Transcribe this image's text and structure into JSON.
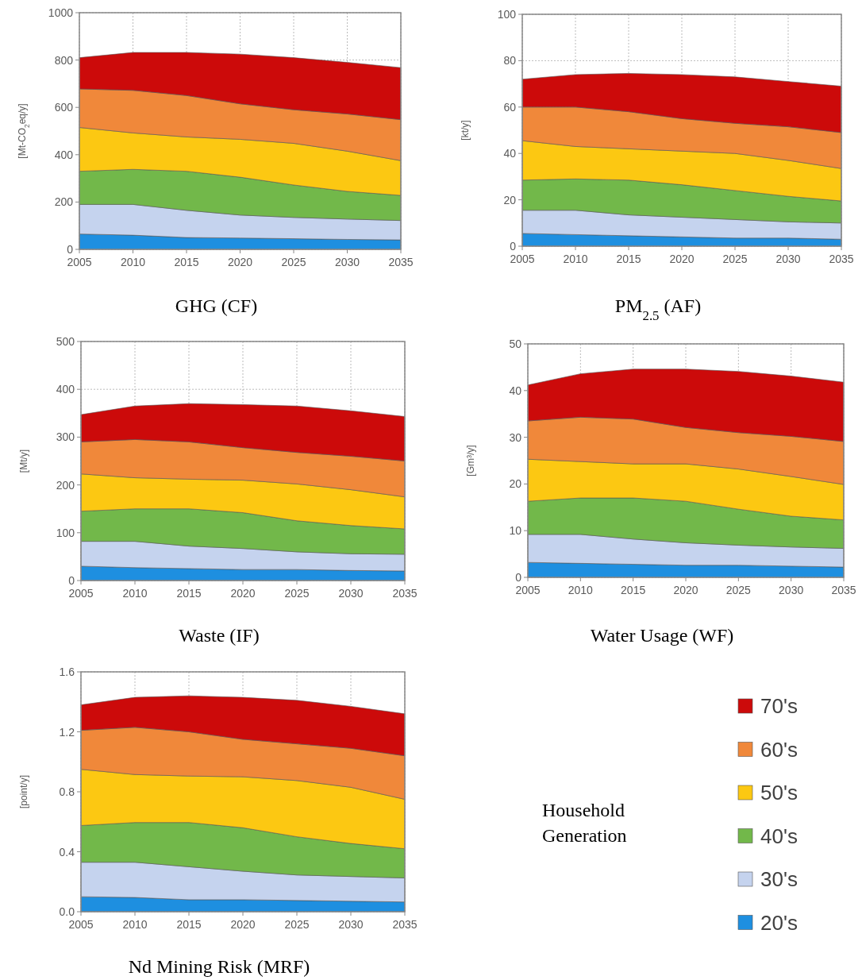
{
  "chart_data": [
    {
      "type": "area",
      "stacked": true,
      "title": "GHG (CF)",
      "ylabel": "[Mt-CO$_{2}$eq/y]",
      "x": [
        2005,
        2010,
        2015,
        2020,
        2025,
        2030,
        2035
      ],
      "xlim": [
        2005,
        2035
      ],
      "xticks": [
        2005,
        2010,
        2015,
        2020,
        2025,
        2030,
        2035
      ],
      "ylim": [
        0,
        1000
      ],
      "yticks": [
        0,
        200,
        400,
        600,
        800,
        1000
      ],
      "grid": true,
      "series": [
        {
          "color": "#1e8fe0",
          "values": [
            65,
            60,
            50,
            48,
            45,
            42,
            40
          ]
        },
        {
          "color": "#c5d3ee",
          "values": [
            125,
            130,
            115,
            97,
            90,
            86,
            82
          ]
        },
        {
          "color": "#72b84a",
          "values": [
            140,
            148,
            165,
            160,
            137,
            117,
            106
          ]
        },
        {
          "color": "#fcc812",
          "values": [
            185,
            154,
            145,
            160,
            176,
            170,
            147
          ]
        },
        {
          "color": "#f0883a",
          "values": [
            163,
            180,
            175,
            150,
            142,
            157,
            173
          ]
        },
        {
          "color": "#cc0a0a",
          "values": [
            132,
            160,
            182,
            210,
            220,
            218,
            220
          ]
        }
      ]
    },
    {
      "type": "area",
      "stacked": true,
      "title": "PM$_{2.5}$ (AF)",
      "ylabel": "[kt/y]",
      "x": [
        2005,
        2010,
        2015,
        2020,
        2025,
        2030,
        2035
      ],
      "xlim": [
        2005,
        2035
      ],
      "xticks": [
        2005,
        2010,
        2015,
        2020,
        2025,
        2030,
        2035
      ],
      "ylim": [
        0,
        100
      ],
      "yticks": [
        0,
        20,
        40,
        60,
        80,
        100
      ],
      "grid": true,
      "series": [
        {
          "color": "#1e8fe0",
          "values": [
            5.5,
            5,
            4.5,
            4,
            3.5,
            3.5,
            3
          ]
        },
        {
          "color": "#c5d3ee",
          "values": [
            10,
            10.5,
            9,
            8.5,
            8,
            7,
            7
          ]
        },
        {
          "color": "#72b84a",
          "values": [
            13,
            13.5,
            15,
            14,
            12.5,
            11,
            9.5
          ]
        },
        {
          "color": "#fcc812",
          "values": [
            17,
            14,
            13.5,
            14.5,
            16,
            15.5,
            14
          ]
        },
        {
          "color": "#f0883a",
          "values": [
            14.5,
            17,
            16,
            14,
            13,
            14.5,
            15.5
          ]
        },
        {
          "color": "#cc0a0a",
          "values": [
            12,
            14,
            16.5,
            19,
            20,
            19.5,
            20
          ]
        }
      ]
    },
    {
      "type": "area",
      "stacked": true,
      "title": "Waste (IF)",
      "ylabel": "[Mt/y]",
      "x": [
        2005,
        2010,
        2015,
        2020,
        2025,
        2030,
        2035
      ],
      "xlim": [
        2005,
        2035
      ],
      "xticks": [
        2005,
        2010,
        2015,
        2020,
        2025,
        2030,
        2035
      ],
      "ylim": [
        0,
        500
      ],
      "yticks": [
        0,
        100,
        200,
        300,
        400,
        500
      ],
      "grid": true,
      "series": [
        {
          "color": "#1e8fe0",
          "values": [
            30,
            27,
            25,
            23,
            23,
            21,
            20
          ]
        },
        {
          "color": "#c5d3ee",
          "values": [
            52,
            55,
            47,
            44,
            37,
            35,
            35
          ]
        },
        {
          "color": "#72b84a",
          "values": [
            63,
            68,
            78,
            75,
            65,
            59,
            53
          ]
        },
        {
          "color": "#fcc812",
          "values": [
            78,
            65,
            62,
            68,
            77,
            75,
            67
          ]
        },
        {
          "color": "#f0883a",
          "values": [
            67,
            80,
            78,
            68,
            66,
            70,
            75
          ]
        },
        {
          "color": "#cc0a0a",
          "values": [
            57,
            70,
            80,
            90,
            97,
            95,
            93
          ]
        }
      ]
    },
    {
      "type": "area",
      "stacked": true,
      "title": "Water Usage (WF)",
      "ylabel": "[Gm³/y]",
      "x": [
        2005,
        2010,
        2015,
        2020,
        2025,
        2030,
        2035
      ],
      "xlim": [
        2005,
        2035
      ],
      "xticks": [
        2005,
        2010,
        2015,
        2020,
        2025,
        2030,
        2035
      ],
      "ylim": [
        0,
        50
      ],
      "yticks": [
        0,
        10,
        20,
        30,
        40,
        50
      ],
      "grid": true,
      "series": [
        {
          "color": "#1e8fe0",
          "values": [
            3.2,
            3.0,
            2.8,
            2.6,
            2.6,
            2.4,
            2.2
          ]
        },
        {
          "color": "#c5d3ee",
          "values": [
            6.0,
            6.2,
            5.4,
            4.8,
            4.3,
            4.1,
            4.0
          ]
        },
        {
          "color": "#72b84a",
          "values": [
            7.1,
            7.8,
            8.8,
            8.9,
            7.7,
            6.6,
            6.1
          ]
        },
        {
          "color": "#fcc812",
          "values": [
            9.0,
            7.8,
            7.3,
            8.0,
            8.6,
            8.5,
            7.6
          ]
        },
        {
          "color": "#f0883a",
          "values": [
            8.2,
            9.5,
            9.6,
            7.8,
            7.8,
            8.6,
            9.2
          ]
        },
        {
          "color": "#cc0a0a",
          "values": [
            7.7,
            9.3,
            10.7,
            12.5,
            13.1,
            12.9,
            12.7
          ]
        }
      ]
    },
    {
      "type": "area",
      "stacked": true,
      "title": "Nd Mining Risk (MRF)",
      "ylabel": "[point/y]",
      "x": [
        2005,
        2010,
        2015,
        2020,
        2025,
        2030,
        2035
      ],
      "xlim": [
        2005,
        2035
      ],
      "xticks": [
        2005,
        2010,
        2015,
        2020,
        2025,
        2030,
        2035
      ],
      "ylim": [
        0,
        1.6
      ],
      "yticks": [
        {
          "value": 0,
          "label": "0.0"
        },
        0.4,
        0.8,
        1.2,
        1.6
      ],
      "grid": true,
      "legend": "right",
      "legend_title": "Household Generation",
      "series": [
        {
          "name": "20's",
          "color": "#1e8fe0",
          "values": [
            0.1,
            0.095,
            0.08,
            0.08,
            0.075,
            0.07,
            0.065
          ]
        },
        {
          "name": "30's",
          "color": "#c5d3ee",
          "values": [
            0.23,
            0.235,
            0.22,
            0.19,
            0.17,
            0.165,
            0.16
          ]
        },
        {
          "name": "40's",
          "color": "#72b84a",
          "values": [
            0.245,
            0.265,
            0.295,
            0.29,
            0.255,
            0.22,
            0.195
          ]
        },
        {
          "name": "50's",
          "color": "#fcc812",
          "values": [
            0.375,
            0.32,
            0.31,
            0.34,
            0.375,
            0.375,
            0.33
          ]
        },
        {
          "name": "60's",
          "color": "#f0883a",
          "values": [
            0.26,
            0.315,
            0.295,
            0.25,
            0.245,
            0.26,
            0.29
          ]
        },
        {
          "name": "70's",
          "color": "#cc0a0a",
          "values": [
            0.17,
            0.2,
            0.24,
            0.28,
            0.29,
            0.28,
            0.28
          ]
        }
      ]
    }
  ]
}
